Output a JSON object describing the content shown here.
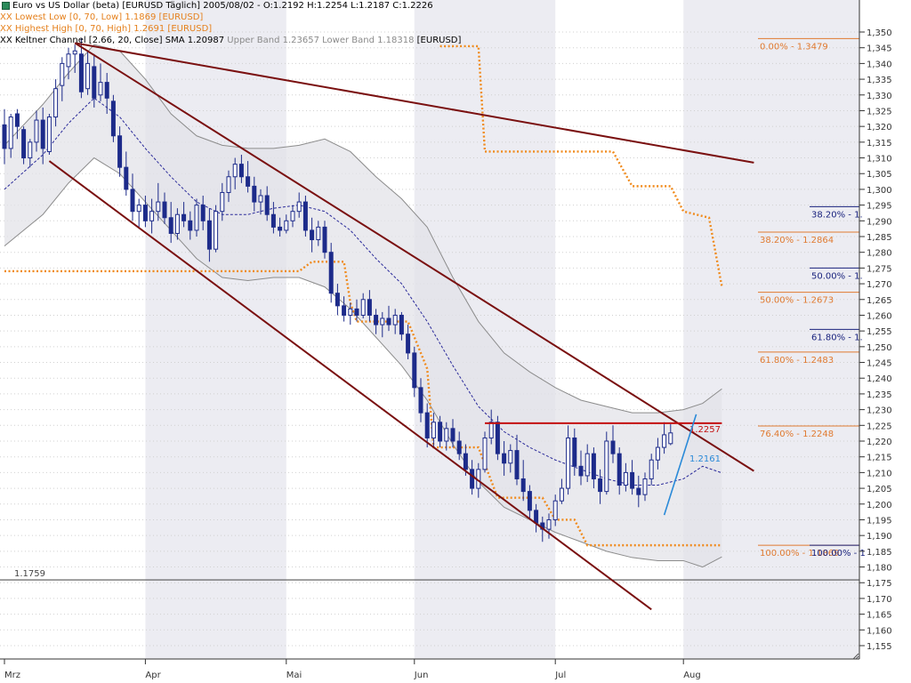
{
  "legend": {
    "title": "Euro vs US Dollar (beta) [EURUSD  Täglich] 2005/08/02 - O:1.2192 H:1.2254 L:1.2187 C:1.2226",
    "lowest": "XX Lowest Low [0, 70, Low] 1.1869 [EURUSD]",
    "highest": "XX Highest High [0, 70, High] 1.2691 [EURUSD]",
    "keltner_main": "XX Keltner Channel [2.66, 20, Close] SMA 1.20987",
    "keltner_bands": "Upper Band 1.23657 Lower Band 1.18318",
    "keltner_tail": "[EURUSD]"
  },
  "colors": {
    "background": "#ffffff",
    "month_shade": "#ececf2",
    "candle": "#1d2b8a",
    "channel_fill": "#e3e3e8",
    "channel_edge": "#8c8c8c",
    "sma": "#2a2a9a",
    "trend": "#7a1010",
    "resistance": "#c41010",
    "donchian": "#f08a1c",
    "fib": "#e07a30",
    "fib_blue": "#1a237e",
    "steep": "#2a8ad8",
    "hline": "#555555",
    "axis": "#333333"
  },
  "chart_data": {
    "type": "candlestick",
    "symbol": "EURUSD",
    "ylim": [
      1.15,
      1.355
    ],
    "y_ticks": [
      "1,155",
      "1,160",
      "1,165",
      "1,170",
      "1,175",
      "1,180",
      "1,185",
      "1,190",
      "1,195",
      "1,200",
      "1,205",
      "1,210",
      "1,215",
      "1,220",
      "1,225",
      "1,230",
      "1,235",
      "1,240",
      "1,245",
      "1,250",
      "1,255",
      "1,260",
      "1,265",
      "1,270",
      "1,275",
      "1,280",
      "1,285",
      "1,290",
      "1,295",
      "1,300",
      "1,305",
      "1,310",
      "1,315",
      "1,320",
      "1,325",
      "1,330",
      "1,335",
      "1,340",
      "1,345",
      "1,350"
    ],
    "x_months": [
      "Mrz",
      "Apr",
      "Mai",
      "Jun",
      "Jul",
      "Aug"
    ],
    "n_bars": 105,
    "candles": [
      [
        1.3205,
        1.3255,
        1.308,
        1.313
      ],
      [
        1.313,
        1.324,
        1.31,
        1.323
      ],
      [
        1.324,
        1.3255,
        1.316,
        1.32
      ],
      [
        1.319,
        1.32,
        1.308,
        1.31
      ],
      [
        1.31,
        1.316,
        1.307,
        1.315
      ],
      [
        1.315,
        1.325,
        1.312,
        1.322
      ],
      [
        1.322,
        1.326,
        1.308,
        1.313
      ],
      [
        1.312,
        1.324,
        1.311,
        1.323
      ],
      [
        1.323,
        1.335,
        1.32,
        1.332
      ],
      [
        1.333,
        1.342,
        1.328,
        1.34
      ],
      [
        1.339,
        1.345,
        1.335,
        1.343
      ],
      [
        1.343,
        1.346,
        1.337,
        1.344
      ],
      [
        1.343,
        1.348,
        1.329,
        1.331
      ],
      [
        1.332,
        1.344,
        1.33,
        1.34
      ],
      [
        1.339,
        1.343,
        1.326,
        1.329
      ],
      [
        1.33,
        1.34,
        1.328,
        1.334
      ],
      [
        1.334,
        1.337,
        1.324,
        1.329
      ],
      [
        1.328,
        1.33,
        1.315,
        1.317
      ],
      [
        1.317,
        1.32,
        1.304,
        1.307
      ],
      [
        1.307,
        1.312,
        1.298,
        1.3
      ],
      [
        1.3,
        1.305,
        1.29,
        1.293
      ],
      [
        1.293,
        1.297,
        1.288,
        1.295
      ],
      [
        1.295,
        1.298,
        1.288,
        1.29
      ],
      [
        1.29,
        1.297,
        1.286,
        1.293
      ],
      [
        1.293,
        1.302,
        1.29,
        1.296
      ],
      [
        1.296,
        1.299,
        1.289,
        1.291
      ],
      [
        1.291,
        1.296,
        1.283,
        1.286
      ],
      [
        1.286,
        1.294,
        1.284,
        1.292
      ],
      [
        1.292,
        1.296,
        1.288,
        1.29
      ],
      [
        1.29,
        1.293,
        1.284,
        1.287
      ],
      [
        1.287,
        1.297,
        1.285,
        1.295
      ],
      [
        1.295,
        1.298,
        1.287,
        1.29
      ],
      [
        1.29,
        1.294,
        1.277,
        1.281
      ],
      [
        1.281,
        1.295,
        1.28,
        1.293
      ],
      [
        1.293,
        1.302,
        1.29,
        1.299
      ],
      [
        1.299,
        1.306,
        1.296,
        1.304
      ],
      [
        1.304,
        1.31,
        1.3,
        1.308
      ],
      [
        1.308,
        1.311,
        1.302,
        1.304
      ],
      [
        1.304,
        1.309,
        1.299,
        1.301
      ],
      [
        1.301,
        1.304,
        1.293,
        1.296
      ],
      [
        1.296,
        1.3,
        1.292,
        1.298
      ],
      [
        1.298,
        1.301,
        1.29,
        1.292
      ],
      [
        1.292,
        1.296,
        1.286,
        1.288
      ],
      [
        1.288,
        1.291,
        1.285,
        1.287
      ],
      [
        1.287,
        1.292,
        1.286,
        1.29
      ],
      [
        1.29,
        1.295,
        1.288,
        1.293
      ],
      [
        1.293,
        1.299,
        1.291,
        1.296
      ],
      [
        1.296,
        1.298,
        1.285,
        1.287
      ],
      [
        1.287,
        1.291,
        1.28,
        1.284
      ],
      [
        1.284,
        1.29,
        1.282,
        1.288
      ],
      [
        1.288,
        1.29,
        1.278,
        1.28
      ],
      [
        1.28,
        1.283,
        1.264,
        1.267
      ],
      [
        1.267,
        1.27,
        1.26,
        1.263
      ],
      [
        1.263,
        1.266,
        1.258,
        1.26
      ],
      [
        1.26,
        1.264,
        1.257,
        1.262
      ],
      [
        1.262,
        1.265,
        1.258,
        1.26
      ],
      [
        1.26,
        1.267,
        1.259,
        1.265
      ],
      [
        1.265,
        1.268,
        1.258,
        1.26
      ],
      [
        1.26,
        1.262,
        1.254,
        1.257
      ],
      [
        1.257,
        1.261,
        1.253,
        1.259
      ],
      [
        1.259,
        1.263,
        1.255,
        1.257
      ],
      [
        1.257,
        1.262,
        1.254,
        1.26
      ],
      [
        1.26,
        1.261,
        1.252,
        1.254
      ],
      [
        1.254,
        1.257,
        1.246,
        1.248
      ],
      [
        1.248,
        1.25,
        1.234,
        1.237
      ],
      [
        1.237,
        1.24,
        1.226,
        1.229
      ],
      [
        1.229,
        1.232,
        1.218,
        1.221
      ],
      [
        1.221,
        1.229,
        1.218,
        1.226
      ],
      [
        1.226,
        1.228,
        1.218,
        1.22
      ],
      [
        1.22,
        1.226,
        1.217,
        1.224
      ],
      [
        1.224,
        1.227,
        1.218,
        1.22
      ],
      [
        1.22,
        1.223,
        1.214,
        1.216
      ],
      [
        1.216,
        1.219,
        1.209,
        1.211
      ],
      [
        1.211,
        1.214,
        1.203,
        1.205
      ],
      [
        1.205,
        1.213,
        1.202,
        1.211
      ],
      [
        1.211,
        1.223,
        1.21,
        1.221
      ],
      [
        1.221,
        1.23,
        1.219,
        1.226
      ],
      [
        1.226,
        1.228,
        1.214,
        1.216
      ],
      [
        1.216,
        1.22,
        1.209,
        1.213
      ],
      [
        1.213,
        1.219,
        1.21,
        1.217
      ],
      [
        1.217,
        1.222,
        1.206,
        1.208
      ],
      [
        1.208,
        1.214,
        1.201,
        1.204
      ],
      [
        1.204,
        1.206,
        1.195,
        1.198
      ],
      [
        1.198,
        1.2,
        1.191,
        1.194
      ],
      [
        1.194,
        1.196,
        1.188,
        1.192
      ],
      [
        1.192,
        1.197,
        1.189,
        1.195
      ],
      [
        1.195,
        1.203,
        1.193,
        1.201
      ],
      [
        1.201,
        1.208,
        1.2,
        1.205
      ],
      [
        1.205,
        1.225,
        1.203,
        1.221
      ],
      [
        1.221,
        1.224,
        1.209,
        1.212
      ],
      [
        1.212,
        1.217,
        1.206,
        1.209
      ],
      [
        1.209,
        1.219,
        1.207,
        1.216
      ],
      [
        1.216,
        1.218,
        1.205,
        1.208
      ],
      [
        1.208,
        1.211,
        1.2,
        1.204
      ],
      [
        1.204,
        1.223,
        1.203,
        1.22
      ],
      [
        1.22,
        1.225,
        1.213,
        1.216
      ],
      [
        1.216,
        1.218,
        1.203,
        1.206
      ],
      [
        1.206,
        1.213,
        1.204,
        1.21
      ],
      [
        1.21,
        1.214,
        1.203,
        1.205
      ],
      [
        1.205,
        1.209,
        1.199,
        1.203
      ],
      [
        1.203,
        1.21,
        1.201,
        1.208
      ],
      [
        1.208,
        1.216,
        1.206,
        1.214
      ],
      [
        1.214,
        1.221,
        1.211,
        1.218
      ],
      [
        1.218,
        1.226,
        1.216,
        1.222
      ],
      [
        1.2192,
        1.2254,
        1.2187,
        1.2226
      ]
    ],
    "series": [
      {
        "name": "XX Highest High [0, 70, High]",
        "style": "orange-dotted-step",
        "points": [
          [
            68,
            1.3455
          ],
          [
            74,
            1.3455
          ],
          [
            75,
            1.312
          ],
          [
            95,
            1.312
          ],
          [
            98,
            1.301
          ],
          [
            104,
            1.301
          ],
          [
            106,
            1.293
          ],
          [
            110,
            1.291
          ],
          [
            112,
            1.2691
          ]
        ]
      },
      {
        "name": "XX Lowest Low [0, 70, Low]",
        "style": "orange-dotted-step",
        "points": [
          [
            0,
            1.274
          ],
          [
            46,
            1.274
          ],
          [
            48,
            1.277
          ],
          [
            53,
            1.277
          ],
          [
            54,
            1.264
          ],
          [
            55,
            1.258
          ],
          [
            63,
            1.258
          ],
          [
            66,
            1.243
          ],
          [
            67,
            1.218
          ],
          [
            74,
            1.218
          ],
          [
            77,
            1.202
          ],
          [
            84,
            1.202
          ],
          [
            86,
            1.195
          ],
          [
            89,
            1.195
          ],
          [
            91,
            1.1869
          ],
          [
            112,
            1.1869
          ]
        ]
      },
      {
        "name": "XX Keltner Channel [2.66, 20, Close]",
        "style": "band",
        "sma": [
          [
            0,
            1.3
          ],
          [
            6,
            1.311
          ],
          [
            10,
            1.321
          ],
          [
            14,
            1.329
          ],
          [
            18,
            1.323
          ],
          [
            22,
            1.313
          ],
          [
            26,
            1.304
          ],
          [
            30,
            1.296
          ],
          [
            34,
            1.292
          ],
          [
            38,
            1.292
          ],
          [
            42,
            1.294
          ],
          [
            46,
            1.295
          ],
          [
            50,
            1.293
          ],
          [
            54,
            1.287
          ],
          [
            58,
            1.278
          ],
          [
            62,
            1.27
          ],
          [
            66,
            1.258
          ],
          [
            70,
            1.244
          ],
          [
            74,
            1.231
          ],
          [
            78,
            1.223
          ],
          [
            82,
            1.218
          ],
          [
            86,
            1.214
          ],
          [
            90,
            1.211
          ],
          [
            94,
            1.208
          ],
          [
            98,
            1.206
          ],
          [
            102,
            1.206
          ],
          [
            106,
            1.208
          ],
          [
            109,
            1.212
          ],
          [
            112,
            1.2099
          ]
        ],
        "upper": [
          [
            0,
            1.314
          ],
          [
            6,
            1.327
          ],
          [
            10,
            1.337
          ],
          [
            14,
            1.346
          ],
          [
            18,
            1.344
          ],
          [
            22,
            1.335
          ],
          [
            26,
            1.324
          ],
          [
            30,
            1.317
          ],
          [
            34,
            1.314
          ],
          [
            38,
            1.313
          ],
          [
            42,
            1.313
          ],
          [
            46,
            1.314
          ],
          [
            50,
            1.316
          ],
          [
            54,
            1.312
          ],
          [
            58,
            1.304
          ],
          [
            62,
            1.297
          ],
          [
            66,
            1.288
          ],
          [
            70,
            1.272
          ],
          [
            74,
            1.258
          ],
          [
            78,
            1.248
          ],
          [
            82,
            1.242
          ],
          [
            86,
            1.237
          ],
          [
            90,
            1.233
          ],
          [
            94,
            1.231
          ],
          [
            98,
            1.229
          ],
          [
            102,
            1.229
          ],
          [
            106,
            1.23
          ],
          [
            109,
            1.232
          ],
          [
            112,
            1.2366
          ]
        ],
        "lower": [
          [
            0,
            1.282
          ],
          [
            6,
            1.292
          ],
          [
            10,
            1.302
          ],
          [
            14,
            1.31
          ],
          [
            18,
            1.305
          ],
          [
            22,
            1.296
          ],
          [
            26,
            1.287
          ],
          [
            30,
            1.278
          ],
          [
            34,
            1.272
          ],
          [
            38,
            1.271
          ],
          [
            42,
            1.272
          ],
          [
            46,
            1.272
          ],
          [
            50,
            1.269
          ],
          [
            54,
            1.262
          ],
          [
            58,
            1.253
          ],
          [
            62,
            1.244
          ],
          [
            66,
            1.233
          ],
          [
            70,
            1.219
          ],
          [
            74,
            1.207
          ],
          [
            78,
            1.199
          ],
          [
            82,
            1.195
          ],
          [
            86,
            1.191
          ],
          [
            90,
            1.188
          ],
          [
            94,
            1.185
          ],
          [
            98,
            1.183
          ],
          [
            102,
            1.182
          ],
          [
            106,
            1.182
          ],
          [
            109,
            1.18
          ],
          [
            112,
            1.1832
          ]
        ]
      }
    ],
    "trendlines": [
      {
        "kind": "upper-trend",
        "from": [
          11,
          1.3465
        ],
        "to": [
          117,
          1.3085
        ]
      },
      {
        "kind": "channel-top",
        "from": [
          11,
          1.3465
        ],
        "to": [
          117,
          1.2105
        ]
      },
      {
        "kind": "channel-bottom",
        "from": [
          7,
          1.309
        ],
        "to": [
          101,
          1.1665
        ]
      },
      {
        "kind": "resistance",
        "from": [
          75,
          1.2257
        ],
        "to": [
          112,
          1.2257
        ],
        "label": "1.2257"
      },
      {
        "kind": "steep-support",
        "from": [
          103,
          1.1965
        ],
        "to": [
          108,
          1.2285
        ],
        "label": "1.2161"
      },
      {
        "kind": "reference",
        "value": 1.1759,
        "label": "1.1759"
      }
    ],
    "fib_orange": [
      {
        "label": "0.00% - 1.3479",
        "value": 1.3479
      },
      {
        "label": "38.20% - 1.2864",
        "value": 1.2864
      },
      {
        "label": "50.00% - 1.2673",
        "value": 1.2673
      },
      {
        "label": "61.80% - 1.2483",
        "value": 1.2483
      },
      {
        "label": "76.40% - 1.2248",
        "value": 1.2248
      },
      {
        "label": "100.00% - 1.1869",
        "value": 1.1869
      }
    ],
    "fib_blue": [
      {
        "label": "38.20% - 1.",
        "value": 1.2945
      },
      {
        "label": "50.00% - 1.",
        "value": 1.275
      },
      {
        "label": "61.80% - 1.",
        "value": 1.2555
      },
      {
        "label": "100.00% - 1",
        "value": 1.1869
      }
    ],
    "grid": true
  }
}
